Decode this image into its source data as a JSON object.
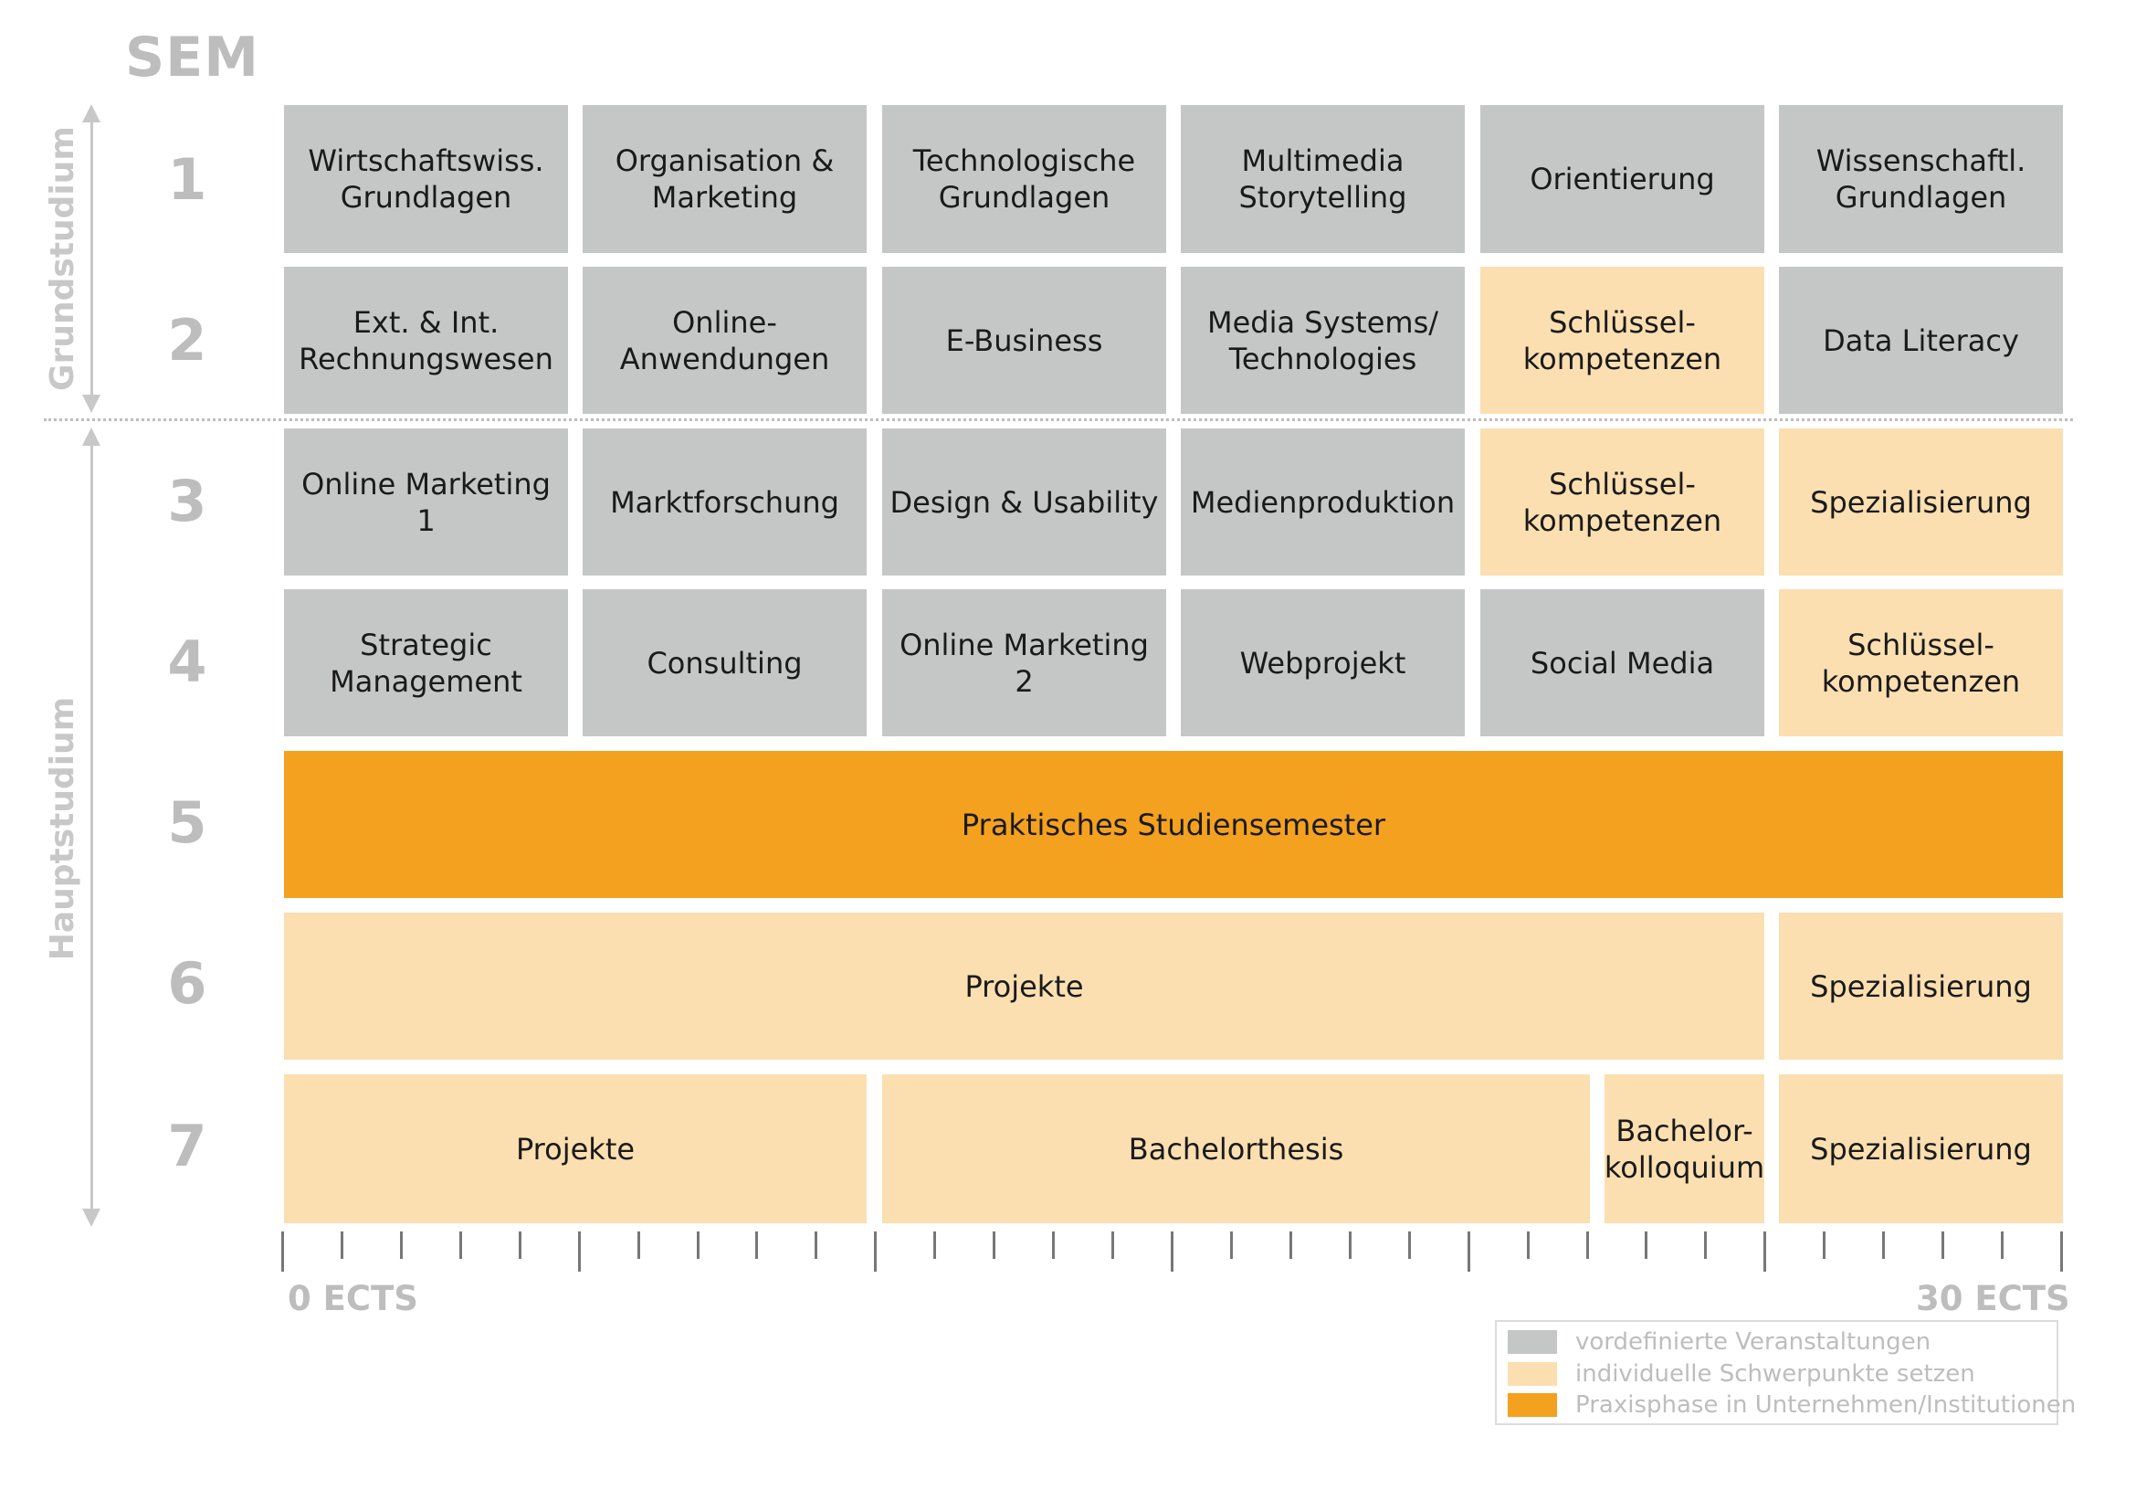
{
  "header": {
    "sem_label": "SEM"
  },
  "phases": {
    "grund": "Grundstudium",
    "haupt": "Hauptstudium"
  },
  "semesters": [
    "1",
    "2",
    "3",
    "4",
    "5",
    "6",
    "7"
  ],
  "rows": {
    "r1": [
      "Wirtschaftswiss.\nGrundlagen",
      "Organisation &\nMarketing",
      "Technologische\nGrundlagen",
      "Multimedia\nStorytelling",
      "Orientierung",
      "Wissenschaftl.\nGrundlagen"
    ],
    "r2": [
      "Ext. & Int.\nRechnungswesen",
      "Online-\nAnwendungen",
      "E-Business",
      "Media Systems/\nTechnologies",
      "Schlüssel-\nkompetenzen",
      "Data Literacy"
    ],
    "r3": [
      "Online Marketing 1",
      "Marktforschung",
      "Design & Usability",
      "Medienproduktion",
      "Schlüssel-\nkompetenzen",
      "Spezialisierung"
    ],
    "r4": [
      "Strategic\nManagement",
      "Consulting",
      "Online Marketing 2",
      "Webprojekt",
      "Social Media",
      "Schlüssel-\nkompetenzen"
    ],
    "r5": [
      "Praktisches Studiensemester"
    ],
    "r6": [
      "Projekte",
      "Spezialisierung"
    ],
    "r7": [
      "Projekte",
      "Bachelorthesis",
      "Bachelor-\nkolloquium",
      "Spezialisierung"
    ]
  },
  "axis": {
    "start": "0 ECTS",
    "end": "30 ECTS"
  },
  "legend": {
    "items": [
      {
        "label": "vordefinierte Veranstaltungen",
        "color": "#c5c7c6"
      },
      {
        "label": "individuelle Schwerpunkte setzen",
        "color": "#fbdfb0"
      },
      {
        "label": "Praxisphase in Unternehmen/Institutionen",
        "color": "#f4a11f"
      }
    ]
  }
}
